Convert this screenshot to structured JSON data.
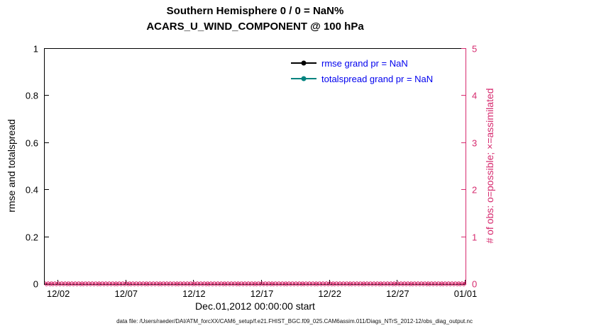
{
  "titles": {
    "line1": "Southern Hemisphere 0 / 0 = NaN%",
    "line2": "ACARS_U_WIND_COMPONENT @ 100 hPa"
  },
  "footer": "data file: /Users/raeder/DAI/ATM_forcXX/CAM6_setup/f.e21.FHIST_BGC.f09_025.CAM6assim.011/Diags_NTrS_2012-12/obs_diag_output.nc",
  "colors": {
    "axis_left": "#000000",
    "axis_right": "#d62a6e",
    "legend_text": "#0000ee",
    "rmse_line": "#000000",
    "totalspread_line": "#00837f",
    "obs_markers": "#d62a6e",
    "background": "#ffffff"
  },
  "chart_data": {
    "type": "line",
    "title": "Southern Hemisphere 0 / 0 = NaN%",
    "subtitle": "ACARS_U_WIND_COMPONENT @ 100 hPa",
    "xlabel": "Dec.01,2012 00:00:00 start",
    "ylabel_left": "rmse and totalspread",
    "ylabel_right": "# of obs: o=possible; ×=assimilated",
    "ylim_left": [
      0,
      1
    ],
    "yticks_left": [
      0,
      0.2,
      0.4,
      0.6,
      0.8,
      1
    ],
    "ytick_labels_left": [
      "0",
      "0.2",
      "0.4",
      "0.6",
      "0.8",
      "1"
    ],
    "ylim_right": [
      0,
      5
    ],
    "yticks_right": [
      0,
      1,
      2,
      3,
      4,
      5
    ],
    "ytick_labels_right": [
      "0",
      "1",
      "2",
      "3",
      "4",
      "5"
    ],
    "xlim_days": [
      0,
      31
    ],
    "xticks_days": [
      1,
      6,
      11,
      16,
      21,
      26,
      31
    ],
    "xtick_labels": [
      "12/02",
      "12/07",
      "12/12",
      "12/17",
      "12/22",
      "12/27",
      "01/01"
    ],
    "grid": false,
    "legend_position": "upper center-right, no box",
    "legend_text_color": "#0000ee",
    "series": [
      {
        "name": "rmse",
        "legend": "rmse grand pr = NaN",
        "color": "#000000",
        "style": "line+dot",
        "values": "NaN (no curve plotted)"
      },
      {
        "name": "totalspread",
        "legend": "totalspread grand pr = NaN",
        "color": "#00837f",
        "style": "line+dot",
        "values": "NaN (no curve plotted)"
      },
      {
        "name": "possible-obs",
        "marker": "o",
        "color": "#d62a6e",
        "axis": "right",
        "constant_value": 0,
        "n_points": 124
      },
      {
        "name": "assimilated-obs",
        "marker": "x",
        "color": "#d62a6e",
        "axis": "right",
        "constant_value": 0,
        "n_points": 124
      }
    ]
  }
}
